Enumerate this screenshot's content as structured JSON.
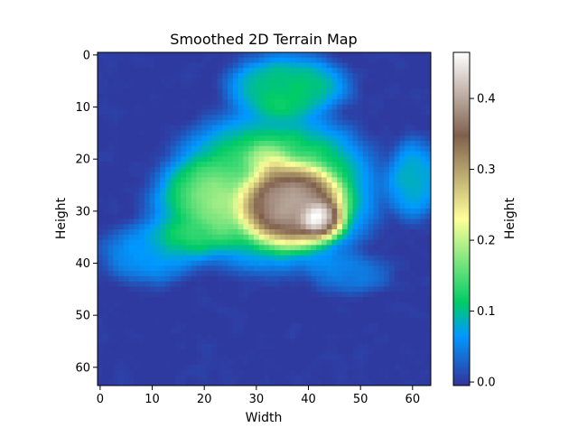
{
  "chart_data": {
    "type": "heatmap",
    "title": "Smoothed 2D Terrain Map",
    "xlabel": "Width",
    "ylabel": "Height",
    "colorbar_label": "Height",
    "grid": false,
    "colormap": "terrain",
    "rows": 64,
    "cols": 64,
    "x_ticks": [
      0,
      10,
      20,
      30,
      40,
      50,
      60
    ],
    "y_ticks": [
      0,
      10,
      20,
      30,
      40,
      50,
      60
    ],
    "xlim": [
      -0.5,
      63.5
    ],
    "ylim": [
      63.5,
      -0.5
    ],
    "colorbar_range": [
      -0.005,
      0.465
    ],
    "colorbar_ticks": [
      0.0,
      0.1,
      0.2,
      0.3,
      0.4
    ],
    "colorbar_tick_labels": [
      "0.0",
      "0.1",
      "0.2",
      "0.3",
      "0.4"
    ],
    "value_range": [
      0.0,
      0.465
    ],
    "features": [
      {
        "shape": "ellipse",
        "center": [
          37,
          29
        ],
        "radius": [
          10,
          8
        ],
        "peak": 0.27
      },
      {
        "shape": "ellipse",
        "center": [
          43,
          32
        ],
        "radius": [
          4,
          3.5
        ],
        "peak": 0.13
      },
      {
        "shape": "ellipse",
        "center": [
          32,
          20
        ],
        "radius": [
          4,
          3
        ],
        "peak": 0.07
      },
      {
        "shape": "ellipse",
        "center": [
          33,
          26
        ],
        "radius": [
          20,
          15
        ],
        "peak": 0.16
      },
      {
        "shape": "ellipse",
        "center": [
          36,
          6
        ],
        "radius": [
          12,
          6
        ],
        "peak": 0.12
      },
      {
        "shape": "ellipse",
        "center": [
          18,
          30
        ],
        "radius": [
          10,
          9
        ],
        "peak": 0.06
      },
      {
        "shape": "ellipse",
        "center": [
          60,
          24
        ],
        "radius": [
          5,
          8
        ],
        "peak": 0.09
      },
      {
        "shape": "ellipse",
        "center": [
          10,
          38
        ],
        "radius": [
          10,
          6
        ],
        "peak": 0.07
      },
      {
        "shape": "ellipse",
        "center": [
          48,
          42
        ],
        "radius": [
          8,
          4
        ],
        "peak": 0.05
      }
    ],
    "noise_amplitude": 0.022
  },
  "colors": {
    "terrain_stops": [
      {
        "t": 0.0,
        "color": "#333399"
      },
      {
        "t": 0.15,
        "color": "#0099ff"
      },
      {
        "t": 0.25,
        "color": "#00cc66"
      },
      {
        "t": 0.5,
        "color": "#ffff99"
      },
      {
        "t": 0.75,
        "color": "#80604d"
      },
      {
        "t": 1.0,
        "color": "#ffffff"
      }
    ],
    "axis_line": "#000000",
    "background": "#ffffff"
  }
}
